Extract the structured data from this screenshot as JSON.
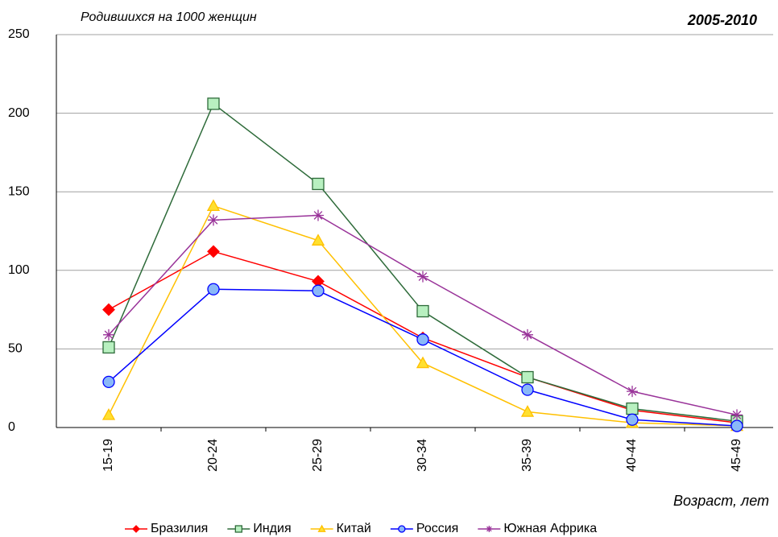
{
  "chart_data": {
    "type": "line",
    "title": "Родившихся на 1000 женщин",
    "subtitle": "2005-2010",
    "x_label": "Возраст, лет",
    "categories": [
      "15-19",
      "20-24",
      "25-29",
      "30-34",
      "35-39",
      "40-44",
      "45-49"
    ],
    "series": [
      {
        "name": "Бразилия",
        "color": "#ff0000",
        "fill": "#ff0000",
        "marker": "diamond",
        "values": [
          75,
          112,
          93,
          57,
          32,
          11,
          3
        ]
      },
      {
        "name": "Индия",
        "color": "#2e6b3a",
        "fill": "#b8f0c0",
        "marker": "square",
        "values": [
          51,
          206,
          155,
          74,
          32,
          12,
          4
        ]
      },
      {
        "name": "Китай",
        "color": "#ffc000",
        "fill": "#ffe030",
        "marker": "triangle",
        "values": [
          8,
          141,
          119,
          41,
          10,
          3,
          1
        ]
      },
      {
        "name": "Россия",
        "color": "#0000ff",
        "fill": "#8ab8f8",
        "marker": "circle",
        "values": [
          29,
          88,
          87,
          56,
          24,
          5,
          1
        ]
      },
      {
        "name": "Южная Африка",
        "color": "#993399",
        "fill": "none",
        "marker": "star",
        "values": [
          59,
          132,
          135,
          96,
          59,
          23,
          8
        ]
      }
    ],
    "ylim": [
      0,
      250
    ],
    "yticks": [
      0,
      50,
      100,
      150,
      200,
      250
    ],
    "grid": true,
    "legend": "bottom"
  }
}
